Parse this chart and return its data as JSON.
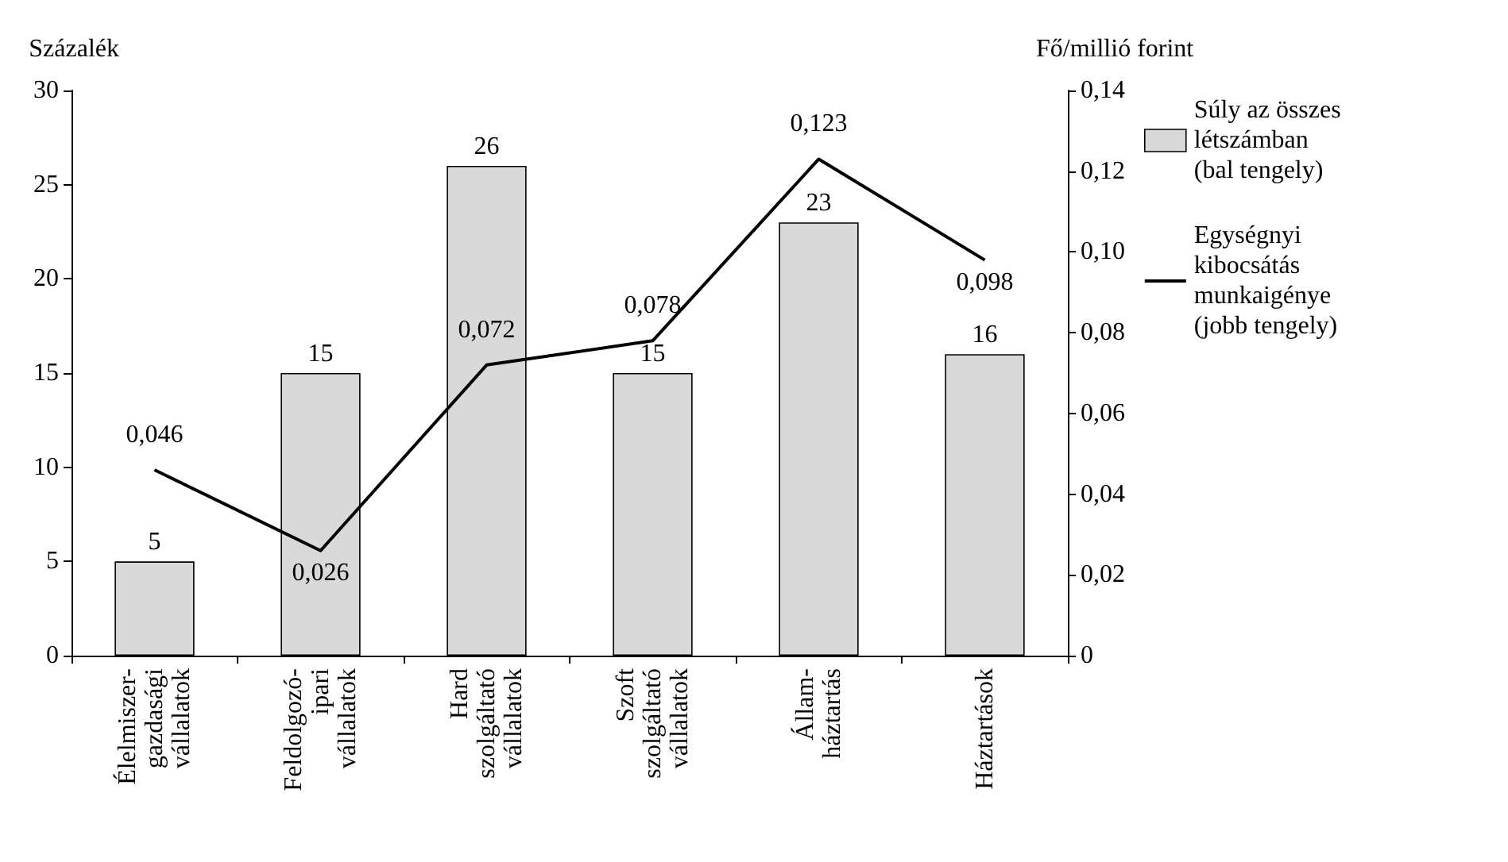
{
  "chart_data": {
    "type": "bar",
    "categories": [
      "Élelmiszer-\ngazdasági\nvállalatok",
      "Feldolgozó-\nipari\nvállalatok",
      "Hard\nszolgáltató\nvállalatok",
      "Szoft\nszolgáltató\nvállalatok",
      "Állam-\nháztartás",
      "Háztartások"
    ],
    "series": [
      {
        "name": "Súly az összes\nlétszámban\n(bal tengely)",
        "color": "#d9d9d9",
        "values": [
          5,
          15,
          26,
          15,
          23,
          16
        ],
        "value_labels": [
          "5",
          "15",
          "26",
          "15",
          "23",
          "16"
        ]
      },
      {
        "type": "line",
        "axis": "y2",
        "name": "Egységnyi\nkibocsátás\nmunkaigénye\n(jobb tengely)",
        "color": "#000000",
        "values": [
          0.046,
          0.026,
          0.072,
          0.078,
          0.123,
          0.098
        ],
        "value_labels": [
          "0,046",
          "0,026",
          "0,072",
          "0,078",
          "0,123",
          "0,098"
        ]
      }
    ],
    "ylabel": "Százalék",
    "y2label": "Fő/millió forint",
    "ylim": [
      0,
      30
    ],
    "yticks": [
      0,
      5,
      10,
      15,
      20,
      25,
      30
    ],
    "y2lim": [
      0,
      0.14
    ],
    "y2ticks": [
      0,
      {
        "value": 0.02,
        "label": "0,02"
      },
      {
        "value": 0.04,
        "label": "0,04"
      },
      {
        "value": 0.06,
        "label": "0,06"
      },
      {
        "value": 0.08,
        "label": "0,08"
      },
      {
        "value": 0.1,
        "label": "0,10"
      },
      {
        "value": 0.12,
        "label": "0,12"
      },
      {
        "value": 0.14,
        "label": "0,14"
      }
    ],
    "legend": "right",
    "marker": "none",
    "line_style": "solid",
    "grid": false
  }
}
